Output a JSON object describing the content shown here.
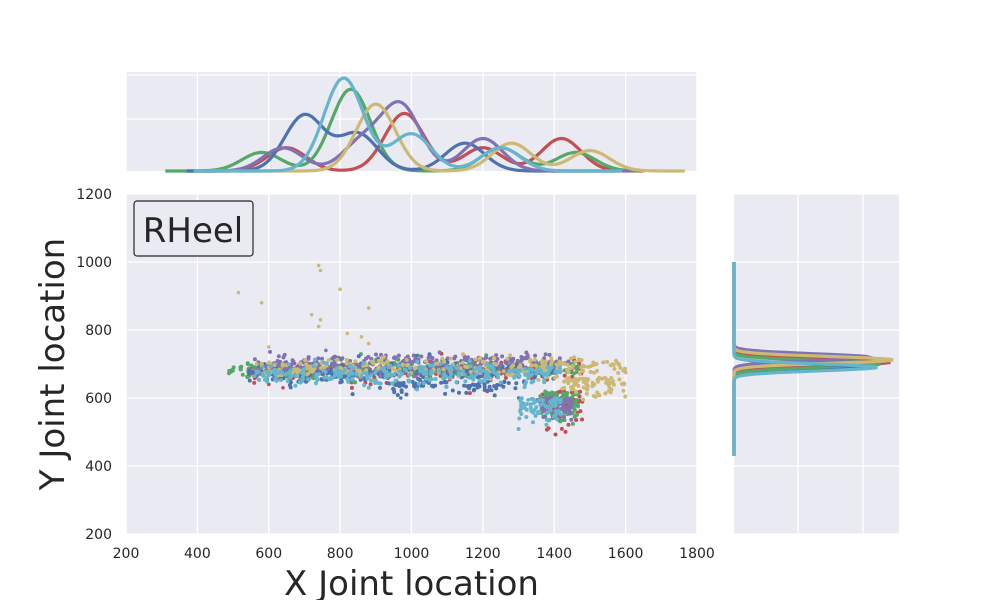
{
  "chart_data": {
    "type": "scatter",
    "subtype": "joint-plot",
    "annotation": "RHeel",
    "xlabel": "X Joint location",
    "ylabel": "Y Joint location",
    "xlim": [
      200,
      1800
    ],
    "ylim": [
      200,
      1200
    ],
    "x_ticks": [
      200,
      400,
      600,
      800,
      1000,
      1200,
      1400,
      1600,
      1800
    ],
    "y_ticks": [
      200,
      400,
      600,
      800,
      1000,
      1200
    ],
    "grid": true,
    "background": "#eaeaf2",
    "series": [
      {
        "color": "#c44e52",
        "x_range": [
          540,
          1480
        ],
        "y_center": 680,
        "tail": {
          "x_range": [
            1360,
            1480
          ],
          "y_range": [
            490,
            620
          ]
        },
        "outliers": [
          [
            600,
            640
          ],
          [
            640,
            630
          ]
        ],
        "x_density_peaks": [
          [
            650,
            0.25
          ],
          [
            980,
            0.62
          ],
          [
            1420,
            0.35
          ],
          [
            1200,
            0.25
          ]
        ],
        "y_density_peaks": [
          [
            705,
            0.98
          ]
        ]
      },
      {
        "color": "#55a868",
        "x_range": [
          480,
          1470
        ],
        "y_center": 685,
        "tail": {
          "x_range": [
            1360,
            1470
          ],
          "y_range": [
            510,
            620
          ]
        },
        "outliers": [
          [
            500,
            680
          ],
          [
            520,
            690
          ]
        ],
        "x_density_peaks": [
          [
            580,
            0.2
          ],
          [
            830,
            0.88
          ],
          [
            1250,
            0.25
          ],
          [
            1460,
            0.2
          ]
        ],
        "y_density_peaks": [
          [
            700,
            0.92
          ]
        ]
      },
      {
        "color": "#4c72b0",
        "x_range": [
          540,
          1400
        ],
        "y_center": 675,
        "tail": {
          "x_range": [
            940,
            1300
          ],
          "y_range": [
            600,
            650
          ]
        },
        "outliers": [
          [
            970,
            600
          ],
          [
            1300,
            600
          ]
        ],
        "x_density_peaks": [
          [
            700,
            0.6
          ],
          [
            850,
            0.4
          ],
          [
            1150,
            0.3
          ]
        ],
        "y_density_peaks": [
          [
            690,
            0.8
          ]
        ]
      },
      {
        "color": "#8172b2",
        "x_range": [
          560,
          1450
        ],
        "y_center": 700,
        "tail": {
          "x_range": [
            1350,
            1450
          ],
          "y_range": [
            520,
            600
          ]
        },
        "outliers": [
          [
            760,
            740
          ]
        ],
        "x_density_peaks": [
          [
            640,
            0.25
          ],
          [
            860,
            0.3
          ],
          [
            970,
            0.7
          ],
          [
            1200,
            0.35
          ]
        ],
        "y_density_peaks": [
          [
            720,
            0.85
          ]
        ]
      },
      {
        "color": "#ccb974",
        "x_range": [
          560,
          1600
        ],
        "y_center": 690,
        "tail": {
          "x_range": [
            1420,
            1600
          ],
          "y_range": [
            590,
            660
          ]
        },
        "outliers": [
          [
            740,
            990
          ],
          [
            745,
            975
          ],
          [
            800,
            920
          ],
          [
            515,
            910
          ],
          [
            580,
            880
          ],
          [
            880,
            865
          ],
          [
            720,
            845
          ],
          [
            745,
            830
          ],
          [
            740,
            810
          ],
          [
            820,
            790
          ],
          [
            860,
            780
          ],
          [
            880,
            760
          ],
          [
            600,
            750
          ]
        ],
        "x_density_peaks": [
          [
            900,
            0.72
          ],
          [
            1280,
            0.3
          ],
          [
            1500,
            0.22
          ]
        ],
        "y_density_peaks": [
          [
            712,
            1.0
          ]
        ]
      },
      {
        "color": "#64b5cd",
        "x_range": [
          560,
          1420
        ],
        "y_center": 670,
        "tail": {
          "x_range": [
            1300,
            1420
          ],
          "y_range": [
            500,
            600
          ]
        },
        "outliers": [
          [
            660,
            660
          ]
        ],
        "x_density_peaks": [
          [
            810,
            1.0
          ],
          [
            1000,
            0.4
          ],
          [
            1250,
            0.25
          ]
        ],
        "y_density_peaks": [
          [
            690,
            0.9
          ]
        ]
      }
    ]
  }
}
